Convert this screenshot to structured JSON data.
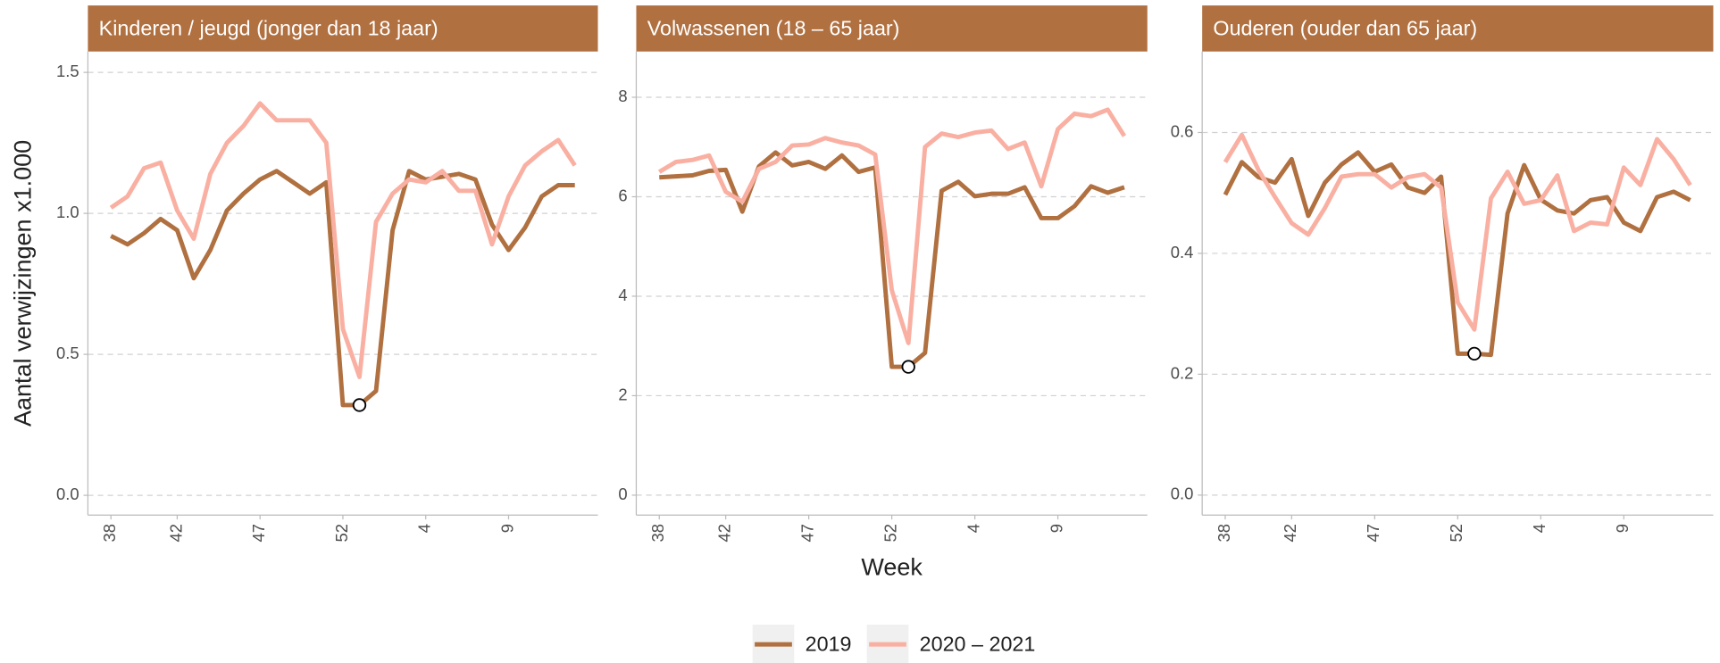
{
  "chart_data": [
    {
      "type": "line",
      "title": "Kinderen / jeugd (jonger dan 18 jaar)",
      "ylabel": "Aantal verwijzingen x1.000",
      "categories": [
        "38",
        null,
        null,
        null,
        "42",
        null,
        null,
        null,
        null,
        "47",
        null,
        null,
        null,
        null,
        "52",
        null,
        null,
        null,
        null,
        "4",
        null,
        null,
        null,
        null,
        "9",
        null,
        null,
        null,
        null
      ],
      "series": [
        {
          "name": "2019",
          "color": "#b07040",
          "values": [
            0.92,
            0.89,
            0.93,
            0.98,
            0.94,
            0.77,
            0.87,
            1.01,
            1.07,
            1.12,
            1.15,
            1.11,
            1.07,
            1.11,
            0.32,
            0.32,
            0.37,
            0.94,
            1.15,
            1.12,
            1.13,
            1.14,
            1.12,
            0.96,
            0.87,
            0.95,
            1.06,
            1.1,
            1.1
          ]
        },
        {
          "name": "2020 – 2021",
          "color": "#f9b0a2",
          "values": [
            1.02,
            1.06,
            1.16,
            1.18,
            1.01,
            0.91,
            1.14,
            1.25,
            1.31,
            1.39,
            1.33,
            1.33,
            1.33,
            1.25,
            0.59,
            0.42,
            0.97,
            1.07,
            1.12,
            1.11,
            1.15,
            1.08,
            1.08,
            0.89,
            1.06,
            1.17,
            1.22,
            1.26,
            1.17
          ]
        }
      ],
      "ylim": [
        -0.07,
        1.574
      ],
      "yticks": [
        {
          "value": 0,
          "label": "0.0"
        },
        {
          "value": 0.5,
          "label": "0.5"
        },
        {
          "value": 1,
          "label": "1.0"
        },
        {
          "value": 1.5,
          "label": "1.5"
        }
      ],
      "grid": true,
      "highlight_point": {
        "series": 0,
        "index": 15
      }
    },
    {
      "type": "line",
      "title": "Volwassenen (18 – 65 jaar)",
      "xlabel": "Week",
      "categories": [
        "38",
        null,
        null,
        null,
        "42",
        null,
        null,
        null,
        null,
        "47",
        null,
        null,
        null,
        null,
        "52",
        null,
        null,
        null,
        null,
        "4",
        null,
        null,
        null,
        null,
        "9",
        null,
        null,
        null,
        null
      ],
      "series": [
        {
          "name": "2019",
          "color": "#b07040",
          "values": [
            6.39,
            6.41,
            6.43,
            6.52,
            6.54,
            5.7,
            6.61,
            6.89,
            6.63,
            6.7,
            6.56,
            6.83,
            6.5,
            6.59,
            2.58,
            2.58,
            2.86,
            6.12,
            6.3,
            6.01,
            6.06,
            6.06,
            6.19,
            5.57,
            5.57,
            5.81,
            6.21,
            6.08,
            6.19
          ]
        },
        {
          "name": "2020 – 2021",
          "color": "#f9b0a2",
          "values": [
            6.5,
            6.7,
            6.74,
            6.83,
            6.1,
            5.9,
            6.56,
            6.7,
            7.03,
            7.05,
            7.18,
            7.09,
            7.03,
            6.85,
            4.12,
            3.06,
            7.0,
            7.27,
            7.2,
            7.29,
            7.33,
            6.96,
            7.09,
            6.21,
            7.36,
            7.67,
            7.62,
            7.75,
            7.22
          ]
        }
      ],
      "ylim": [
        -0.4,
        8.92
      ],
      "yticks": [
        0,
        2,
        4,
        6,
        8
      ],
      "grid": true,
      "highlight_point": {
        "series": 0,
        "index": 15
      }
    },
    {
      "type": "line",
      "title": "Ouderen (ouder dan 65 jaar)",
      "categories": [
        "38",
        null,
        null,
        null,
        "42",
        null,
        null,
        null,
        null,
        "47",
        null,
        null,
        null,
        null,
        "52",
        null,
        null,
        null,
        null,
        "4",
        null,
        null,
        null,
        null,
        "9",
        null,
        null,
        null,
        null
      ],
      "series": [
        {
          "name": "2019",
          "color": "#b07040",
          "values": [
            0.497,
            0.551,
            0.526,
            0.517,
            0.556,
            0.462,
            0.517,
            0.547,
            0.567,
            0.535,
            0.547,
            0.509,
            0.5,
            0.527,
            0.234,
            0.234,
            0.232,
            0.466,
            0.546,
            0.489,
            0.471,
            0.466,
            0.488,
            0.493,
            0.451,
            0.437,
            0.493,
            0.502,
            0.488
          ]
        },
        {
          "name": "2020 – 2021",
          "color": "#f9b0a2",
          "values": [
            0.551,
            0.596,
            0.538,
            0.493,
            0.45,
            0.431,
            0.475,
            0.527,
            0.531,
            0.531,
            0.509,
            0.526,
            0.531,
            0.509,
            0.319,
            0.274,
            0.491,
            0.535,
            0.482,
            0.488,
            0.529,
            0.437,
            0.451,
            0.448,
            0.542,
            0.513,
            0.589,
            0.556,
            0.513
          ]
        }
      ],
      "ylim": [
        -0.033,
        0.734
      ],
      "yticks": [
        {
          "value": 0,
          "label": "0.0"
        },
        {
          "value": 0.2,
          "label": "0.2"
        },
        {
          "value": 0.4,
          "label": "0.4"
        },
        {
          "value": 0.6,
          "label": "0.6"
        }
      ],
      "grid": true,
      "highlight_point": {
        "series": 0,
        "index": 15
      }
    }
  ]
}
